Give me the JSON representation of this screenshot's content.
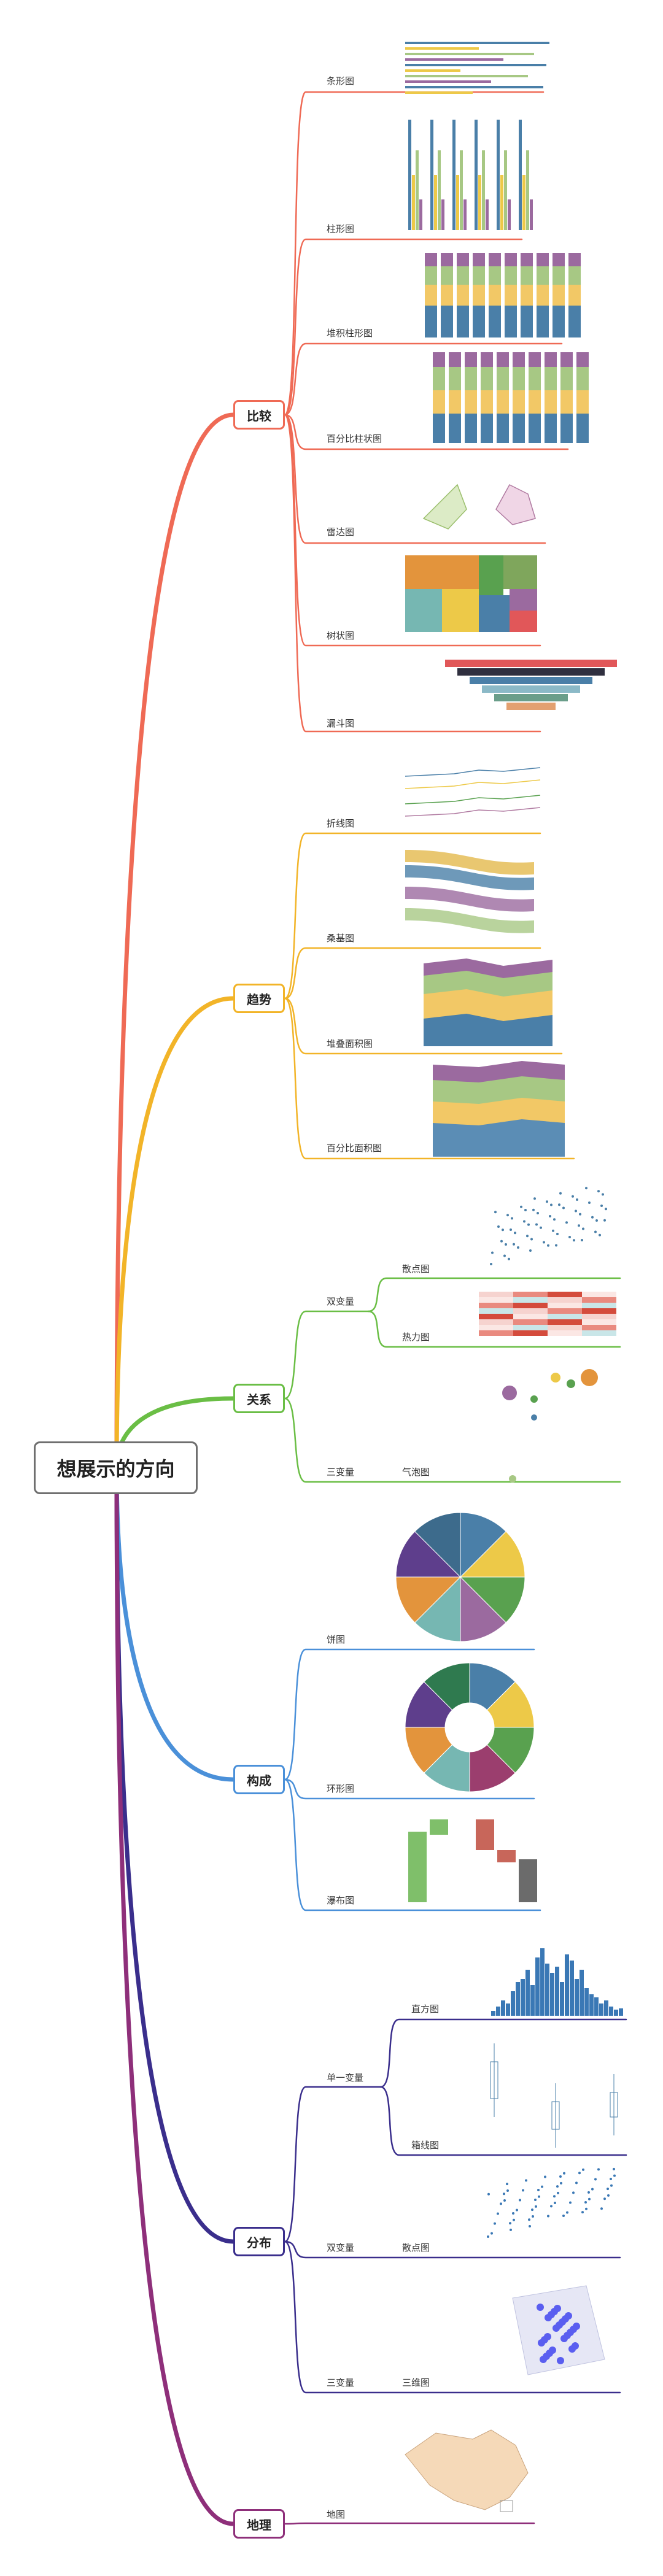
{
  "root": "想展示的方向",
  "colors": {
    "comparison": "#ef6a55",
    "trend": "#f2b428",
    "relation": "#6abe45",
    "composition": "#4a90d9",
    "distribution": "#3a2e8c",
    "geo": "#8e2f7a"
  },
  "categories": {
    "comparison": {
      "label": "比较",
      "items": [
        "条形图",
        "柱形图",
        "堆积柱形图",
        "百分比柱状图",
        "雷达图",
        "树状图",
        "漏斗图"
      ]
    },
    "trend": {
      "label": "趋势",
      "items": [
        "折线图",
        "桑基图",
        "堆叠面积图",
        "百分比面积图"
      ]
    },
    "relation": {
      "label": "关系",
      "sub": [
        "双变量",
        "三变量"
      ],
      "items": [
        "散点图",
        "热力图",
        "气泡图"
      ]
    },
    "composition": {
      "label": "构成",
      "items": [
        "饼图",
        "环形图",
        "瀑布图"
      ]
    },
    "distribution": {
      "label": "分布",
      "sub": [
        "单一变量",
        "双变量",
        "三变量"
      ],
      "items": [
        "直方图",
        "箱线图",
        "散点图",
        "三维图"
      ]
    },
    "geo": {
      "label": "地理",
      "items": [
        "地图"
      ]
    }
  }
}
